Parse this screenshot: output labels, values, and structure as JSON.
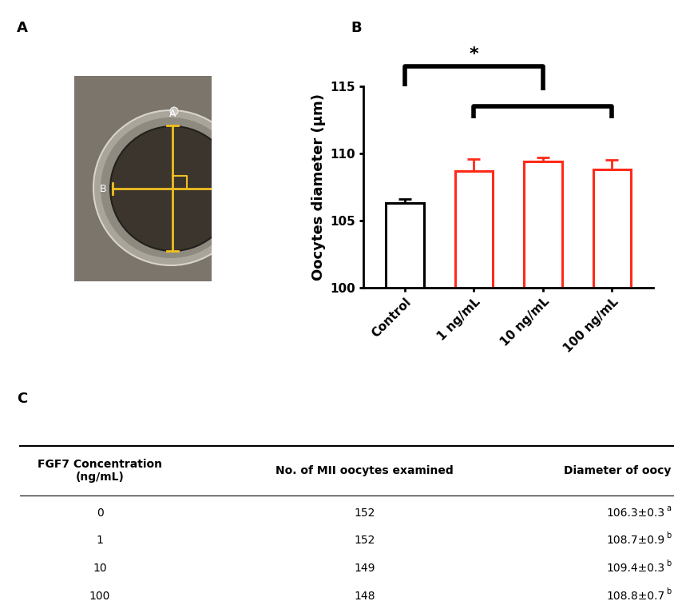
{
  "panel_labels": [
    "A",
    "B",
    "C"
  ],
  "image": {
    "measure_labels": [
      "A",
      "B"
    ]
  },
  "chart_data": {
    "type": "bar",
    "categories": [
      "Control",
      "1 ng/mL",
      "10 ng/mL",
      "100 ng/mL"
    ],
    "values": [
      106.3,
      108.7,
      109.4,
      108.8
    ],
    "errors": [
      0.3,
      0.9,
      0.3,
      0.7
    ],
    "colors": [
      "#000000",
      "#ff2a1a",
      "#ff2a1a",
      "#ff2a1a"
    ],
    "y_label": "Oocytes diameter (μm)",
    "ylim": [
      100,
      115
    ],
    "yticks": [
      100,
      105,
      110,
      115
    ],
    "significance": "*"
  },
  "table": {
    "header": [
      "FGF7 Concentration (ng/mL)",
      "No. of MII oocytes examined",
      "Diameter of oocy"
    ],
    "rows": [
      [
        "0",
        "152",
        "106.3±0.3",
        "a"
      ],
      [
        "1",
        "152",
        "108.7±0.9",
        "b"
      ],
      [
        "10",
        "149",
        "109.4±0.3",
        "b"
      ],
      [
        "100",
        "148",
        "108.8±0.7",
        "b"
      ]
    ]
  }
}
